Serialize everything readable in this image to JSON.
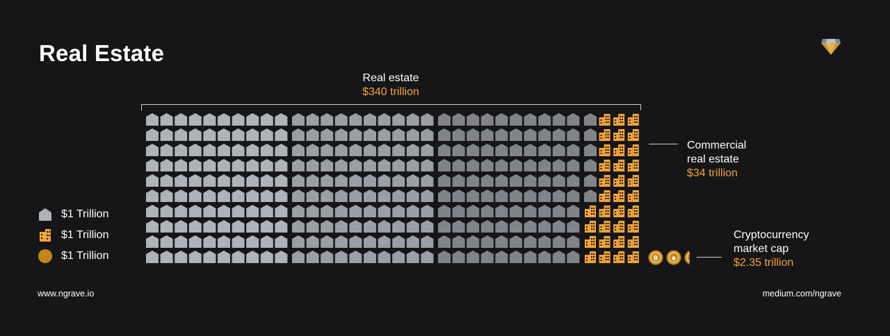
{
  "title": "Real Estate",
  "header": {
    "total_label": "Real estate",
    "total_value": "$340 trillion"
  },
  "annotations": {
    "commercial": {
      "line1": "Commercial",
      "line2": "real estate",
      "value": "$34 trillion"
    },
    "crypto": {
      "line1": "Cryptocurrency",
      "line2": "market cap",
      "value": "$2.35 trillion"
    }
  },
  "legend": [
    {
      "icon": "house-icon",
      "label": "$1 Trillion"
    },
    {
      "icon": "building-icon",
      "label": "$1 Trillion"
    },
    {
      "icon": "coin-icon",
      "label": "$1 Trillion"
    }
  ],
  "footer": {
    "left": "www.ngrave.io",
    "right": "medium.com/ngrave"
  },
  "colors": {
    "background": "#161618",
    "house_light": "#aeb2b9",
    "house_mid": "#9a9ea5",
    "house_dark": "#80848a",
    "building": "#f2a53a",
    "coin": "#c3861c"
  },
  "chart_data": {
    "type": "waffle",
    "unit": "$1 Trillion",
    "rows": 10,
    "series": [
      {
        "name": "Real estate",
        "value": 340
      },
      {
        "name": "Commercial real estate",
        "value": 34
      },
      {
        "name": "Cryptocurrency market cap",
        "value": 2.35
      }
    ],
    "crypto_coins": [
      "bitcoin",
      "ethereum",
      "other"
    ]
  }
}
